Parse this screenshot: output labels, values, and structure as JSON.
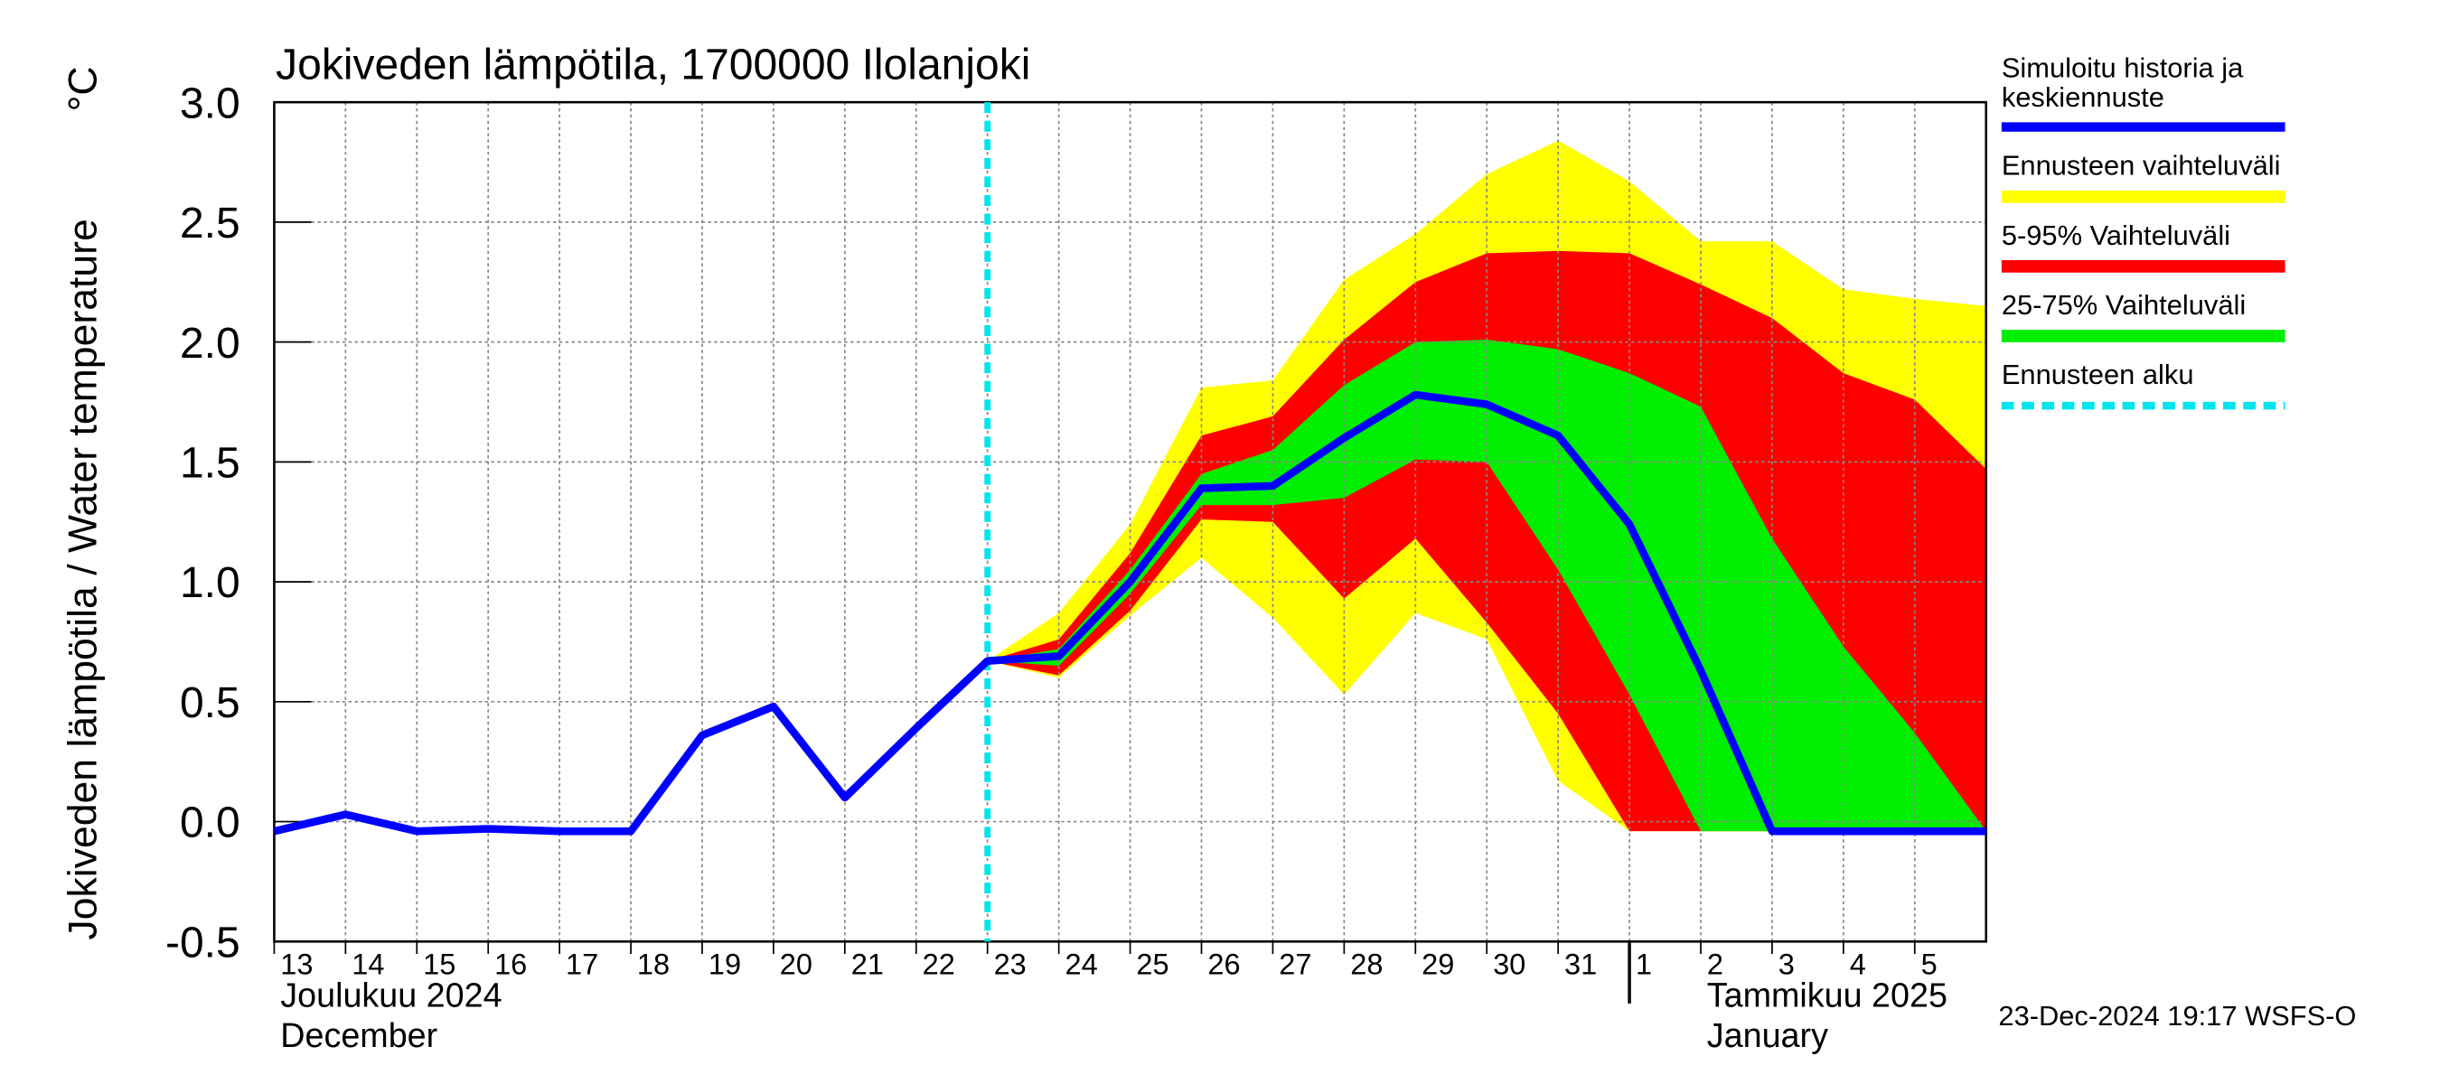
{
  "chart_data": {
    "type": "line",
    "title": "Jokiveden lämpötila, 1700000 Ilolanjoki",
    "y_label": "Jokiveden lämpötila / Water temperature",
    "y_unit": "°C",
    "x": [
      "2024-12-13",
      "2024-12-14",
      "2024-12-15",
      "2024-12-16",
      "2024-12-17",
      "2024-12-18",
      "2024-12-19",
      "2024-12-20",
      "2024-12-21",
      "2024-12-22",
      "2024-12-23",
      "2024-12-24",
      "2024-12-25",
      "2024-12-26",
      "2024-12-27",
      "2024-12-28",
      "2024-12-29",
      "2024-12-30",
      "2024-12-31",
      "2025-01-01",
      "2025-01-02",
      "2025-01-03",
      "2025-01-04",
      "2025-01-05",
      "2025-01-06"
    ],
    "series": [
      {
        "name": "Simuloitu historia ja\nkeskiennuste",
        "color": "#0000ff",
        "values": [
          -0.04,
          0.03,
          -0.04,
          -0.03,
          -0.04,
          -0.04,
          0.36,
          0.48,
          0.1,
          0.39,
          0.67,
          0.69,
          1.0,
          1.39,
          1.4,
          1.6,
          1.78,
          1.74,
          1.61,
          1.24,
          0.63,
          -0.04,
          -0.04,
          -0.04,
          -0.04
        ]
      }
    ],
    "band_x": [
      "2024-12-23",
      "2024-12-24",
      "2024-12-25",
      "2024-12-26",
      "2024-12-27",
      "2024-12-28",
      "2024-12-29",
      "2024-12-30",
      "2024-12-31",
      "2025-01-01",
      "2025-01-02",
      "2025-01-03",
      "2025-01-04",
      "2025-01-05",
      "2025-01-06"
    ],
    "bands": [
      {
        "name": "Ennusteen vaihteluväli",
        "color": "#ffff00",
        "upper": [
          0.67,
          0.87,
          1.24,
          1.81,
          1.84,
          2.26,
          2.45,
          2.7,
          2.84,
          2.67,
          2.42,
          2.42,
          2.22,
          2.18,
          2.15
        ],
        "lower": [
          0.67,
          0.6,
          0.86,
          1.1,
          0.85,
          0.53,
          0.87,
          0.76,
          0.17,
          -0.04,
          -0.04,
          -0.04,
          -0.04,
          -0.04,
          -0.04
        ]
      },
      {
        "name": "5-95% Vaihteluväli",
        "color": "#ff0000",
        "upper": [
          0.67,
          0.76,
          1.12,
          1.61,
          1.69,
          2.01,
          2.25,
          2.37,
          2.38,
          2.37,
          2.24,
          2.1,
          1.87,
          1.76,
          1.47
        ],
        "lower": [
          0.67,
          0.61,
          0.88,
          1.26,
          1.25,
          0.93,
          1.18,
          0.83,
          0.45,
          -0.04,
          -0.04,
          -0.04,
          -0.04,
          -0.04,
          -0.04
        ]
      },
      {
        "name": "25-75% Vaihteluväli",
        "color": "#00ee00",
        "upper": [
          0.67,
          0.72,
          1.05,
          1.45,
          1.55,
          1.82,
          2.0,
          2.01,
          1.97,
          1.87,
          1.73,
          1.18,
          0.73,
          0.37,
          -0.04
        ],
        "lower": [
          0.67,
          0.65,
          0.95,
          1.32,
          1.32,
          1.35,
          1.51,
          1.5,
          1.05,
          0.53,
          -0.04,
          -0.04,
          -0.04,
          -0.04,
          -0.04
        ]
      }
    ],
    "forecast_start": {
      "name": "Ennusteen alku",
      "color": "#00e5ee",
      "x": "2024-12-23"
    },
    "xlim": [
      "2024-12-13",
      "2025-01-06"
    ],
    "xticks": [
      {
        "value": "2024-12-13",
        "label": "13"
      },
      {
        "value": "2024-12-14",
        "label": "14"
      },
      {
        "value": "2024-12-15",
        "label": "15"
      },
      {
        "value": "2024-12-16",
        "label": "16"
      },
      {
        "value": "2024-12-17",
        "label": "17"
      },
      {
        "value": "2024-12-18",
        "label": "18"
      },
      {
        "value": "2024-12-19",
        "label": "19"
      },
      {
        "value": "2024-12-20",
        "label": "20"
      },
      {
        "value": "2024-12-21",
        "label": "21"
      },
      {
        "value": "2024-12-22",
        "label": "22"
      },
      {
        "value": "2024-12-23",
        "label": "23"
      },
      {
        "value": "2024-12-24",
        "label": "24"
      },
      {
        "value": "2024-12-25",
        "label": "25"
      },
      {
        "value": "2024-12-26",
        "label": "26"
      },
      {
        "value": "2024-12-27",
        "label": "27"
      },
      {
        "value": "2024-12-28",
        "label": "28"
      },
      {
        "value": "2024-12-29",
        "label": "29"
      },
      {
        "value": "2024-12-30",
        "label": "30"
      },
      {
        "value": "2024-12-31",
        "label": "31"
      },
      {
        "value": "2025-01-01",
        "label": "1"
      },
      {
        "value": "2025-01-02",
        "label": "2"
      },
      {
        "value": "2025-01-03",
        "label": "3"
      },
      {
        "value": "2025-01-04",
        "label": "4"
      },
      {
        "value": "2025-01-05",
        "label": "5"
      }
    ],
    "months": [
      {
        "value": "2024-12-13",
        "label": "Joulukuu  2024",
        "label_en": "December"
      },
      {
        "value": "2025-01-01",
        "label": "Tammikuu  2025",
        "label_en": "January"
      }
    ],
    "ylim": [
      -0.5,
      3.0
    ],
    "yticks": [
      -0.5,
      {
        "value": 0,
        "label": "0.0"
      },
      0.5,
      {
        "value": 1,
        "label": "1.0"
      },
      1.5,
      {
        "value": 2,
        "label": "2.0"
      },
      2.5,
      {
        "value": 3,
        "label": "3.0"
      }
    ],
    "grid": true,
    "timestamp": "23-Dec-2024 19:17 WSFS-O"
  }
}
